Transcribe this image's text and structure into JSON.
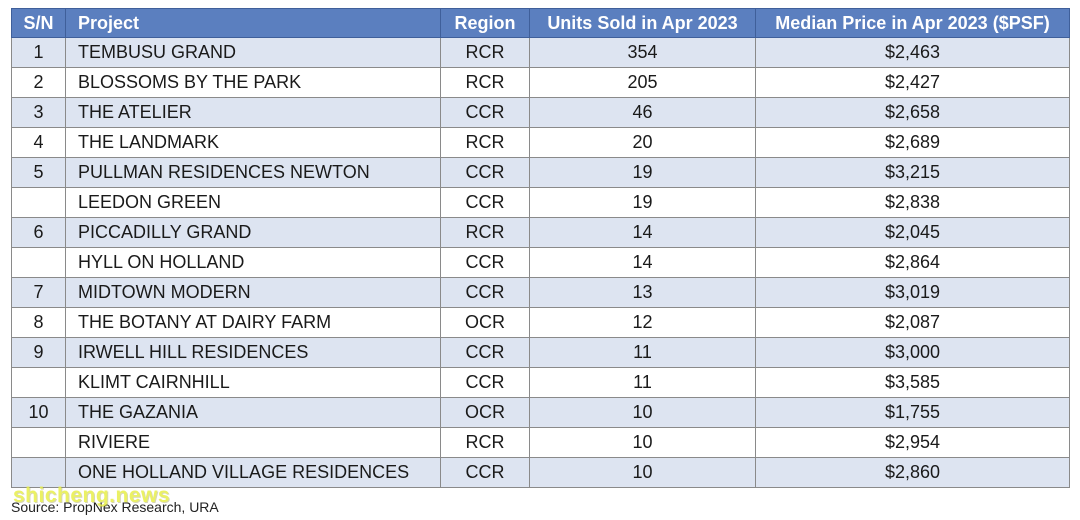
{
  "table": {
    "headers": {
      "sn": "S/N",
      "project": "Project",
      "region": "Region",
      "units": "Units Sold in Apr 2023",
      "price": "Median Price in Apr 2023 ($PSF)"
    },
    "rows": [
      {
        "sn": "1",
        "project": "TEMBUSU GRAND",
        "region": "RCR",
        "units": "354",
        "price": "$2,463"
      },
      {
        "sn": "2",
        "project": "BLOSSOMS BY THE PARK",
        "region": "RCR",
        "units": "205",
        "price": "$2,427"
      },
      {
        "sn": "3",
        "project": "THE ATELIER",
        "region": "CCR",
        "units": "46",
        "price": "$2,658"
      },
      {
        "sn": "4",
        "project": "THE LANDMARK",
        "region": "RCR",
        "units": "20",
        "price": "$2,689"
      },
      {
        "sn": "5",
        "project": "PULLMAN RESIDENCES NEWTON",
        "region": "CCR",
        "units": "19",
        "price": "$3,215"
      },
      {
        "sn": "",
        "project": "LEEDON GREEN",
        "region": "CCR",
        "units": "19",
        "price": "$2,838"
      },
      {
        "sn": "6",
        "project": "PICCADILLY GRAND",
        "region": "RCR",
        "units": "14",
        "price": "$2,045"
      },
      {
        "sn": "",
        "project": "HYLL ON HOLLAND",
        "region": "CCR",
        "units": "14",
        "price": "$2,864"
      },
      {
        "sn": "7",
        "project": "MIDTOWN MODERN",
        "region": "CCR",
        "units": "13",
        "price": "$3,019"
      },
      {
        "sn": "8",
        "project": "THE BOTANY AT DAIRY FARM",
        "region": "OCR",
        "units": "12",
        "price": "$2,087"
      },
      {
        "sn": "9",
        "project": "IRWELL HILL RESIDENCES",
        "region": "CCR",
        "units": "11",
        "price": "$3,000"
      },
      {
        "sn": "",
        "project": "KLIMT CAIRNHILL",
        "region": "CCR",
        "units": "11",
        "price": "$3,585"
      },
      {
        "sn": "10",
        "project": "THE GAZANIA",
        "region": "OCR",
        "units": "10",
        "price": "$1,755"
      },
      {
        "sn": "",
        "project": "RIVIERE",
        "region": "RCR",
        "units": "10",
        "price": "$2,954"
      },
      {
        "sn": "",
        "project": "ONE HOLLAND VILLAGE RESIDENCES",
        "region": "CCR",
        "units": "10",
        "price": "$2,860"
      }
    ]
  },
  "source": "Source: PropNex Research, URA",
  "watermark": "shicheng.news",
  "colors": {
    "header_bg": "#5b7fbf",
    "row_stripe": "#dde4f1",
    "watermark": "#e8ef4a"
  }
}
